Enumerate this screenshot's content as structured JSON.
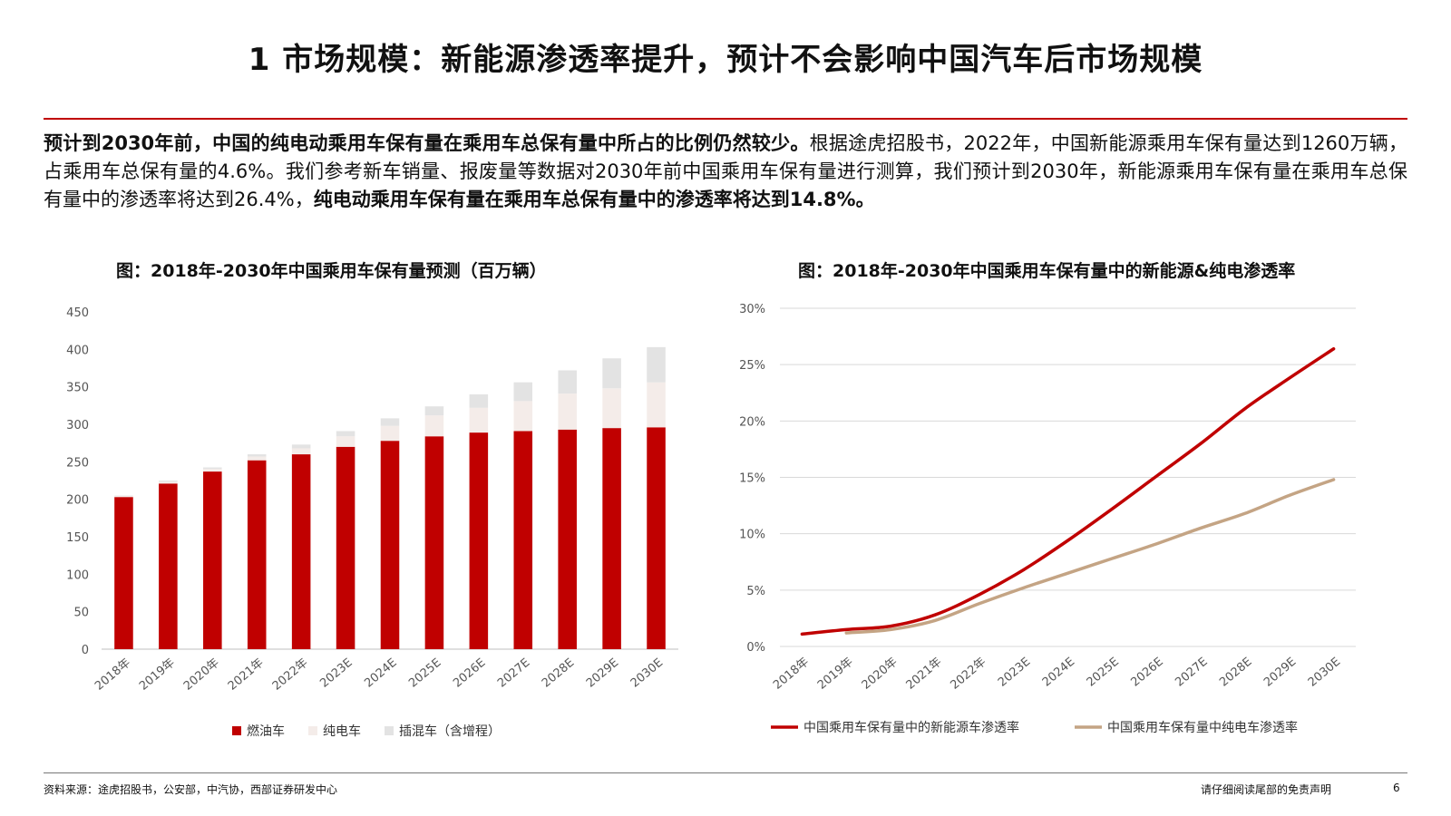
{
  "slide": {
    "title": "1 市场规模：新能源渗透率提升，预计不会影响中国汽车后市场规模",
    "summary": {
      "bold_1": "预计到2030年前，中国的纯电动乘用车保有量在乘用车总保有量中所占的比例仍然较少。",
      "normal": "根据途虎招股书，2022年，中国新能源乘用车保有量达到1260万辆，占乘用车总保有量的4.6%。我们参考新车销量、报废量等数据对2030年前中国乘用车保有量进行测算，我们预计到2030年，新能源乘用车保有量在乘用车总保有量中的渗透率将达到26.4%，",
      "bold_2": "纯电动乘用车保有量在乘用车总保有量中的渗透率将达到14.8%。"
    },
    "left_chart_title": "图：2018年-2030年中国乘用车保有量预测（百万辆）",
    "right_chart_title": "图：2018年-2030年中国乘用车保有量中的新能源&纯电渗透率",
    "source_note": "资料来源：途虎招股书，公安部，中汽协，西部证券研发中心",
    "disclaimer": "请仔细阅读尾部的免责声明",
    "page_number": "6"
  },
  "colors": {
    "accent": "#c00000",
    "fuel": "#c00000",
    "bev": "#f4ece9",
    "phev": "#e3e3e3",
    "nev_line": "#c00000",
    "bev_line": "#c4a484",
    "grid": "#d9d9d9"
  },
  "chart_data": [
    {
      "type": "bar",
      "stacked": true,
      "categories": [
        "2018年",
        "2019年",
        "2020年",
        "2021年",
        "2022年",
        "2023E",
        "2024E",
        "2025E",
        "2026E",
        "2027E",
        "2028E",
        "2029E",
        "2030E"
      ],
      "series": [
        {
          "name": "燃油车",
          "values": [
            203,
            221,
            237,
            252,
            260,
            270,
            278,
            284,
            289,
            291,
            293,
            295,
            296
          ]
        },
        {
          "name": "纯电车",
          "values": [
            1.5,
            2.5,
            3.5,
            5,
            8,
            14,
            20,
            28,
            33,
            40,
            48,
            53,
            60
          ]
        },
        {
          "name": "插混车（含增程）",
          "values": [
            0.5,
            1.5,
            2,
            3,
            5,
            7,
            10,
            12,
            18,
            25,
            31,
            40,
            47
          ]
        }
      ],
      "ylim": [
        0,
        450
      ],
      "yticks": [
        "0",
        "50",
        "100",
        "150",
        "200",
        "250",
        "300",
        "350",
        "400",
        "450"
      ],
      "grid": false,
      "legend": "bottom"
    },
    {
      "type": "line",
      "categories": [
        "2018年",
        "2019年",
        "2020年",
        "2021年",
        "2022年",
        "2023E",
        "2024E",
        "2025E",
        "2026E",
        "2027E",
        "2028E",
        "2029E",
        "2030E"
      ],
      "series": [
        {
          "name": "中国乘用车保有量中的新能源车渗透率",
          "values": [
            0.011,
            0.015,
            0.018,
            0.028,
            0.046,
            0.068,
            0.094,
            0.122,
            0.151,
            0.18,
            0.211,
            0.238,
            0.264
          ]
        },
        {
          "name": "中国乘用车保有量中纯电车渗透率",
          "values": [
            null,
            0.012,
            0.015,
            0.023,
            0.038,
            0.052,
            0.065,
            0.078,
            0.091,
            0.105,
            0.118,
            0.134,
            0.148
          ]
        }
      ],
      "ylim": [
        0,
        0.3
      ],
      "yticks": [
        "0%",
        "5%",
        "10%",
        "15%",
        "20%",
        "25%",
        "30%"
      ],
      "grid": true,
      "legend": "bottom"
    }
  ]
}
